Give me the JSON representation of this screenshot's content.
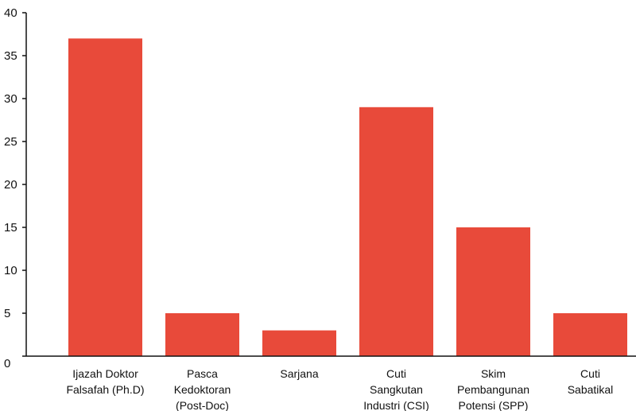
{
  "chart_data": {
    "type": "bar",
    "categories": [
      [
        "Ijazah Doktor",
        "Falsafah (Ph.D)"
      ],
      [
        "Pasca",
        "Kedoktoran",
        "(Post-Doc)"
      ],
      [
        "Sarjana"
      ],
      [
        "Cuti",
        "Sangkutan",
        "Industri (CSI)"
      ],
      [
        "Skim",
        "Pembangunan",
        "Potensi (SPP)"
      ],
      [
        "Cuti",
        "Sabatikal"
      ]
    ],
    "values": [
      37,
      5,
      3,
      29,
      15,
      5
    ],
    "ylim": [
      0,
      40
    ],
    "yticks": [
      0,
      5,
      10,
      15,
      20,
      25,
      30,
      35,
      40
    ],
    "title": "",
    "xlabel": "",
    "ylabel": "",
    "grid": false,
    "bar_color": "#E84A3A",
    "axis_color": "#111111"
  }
}
